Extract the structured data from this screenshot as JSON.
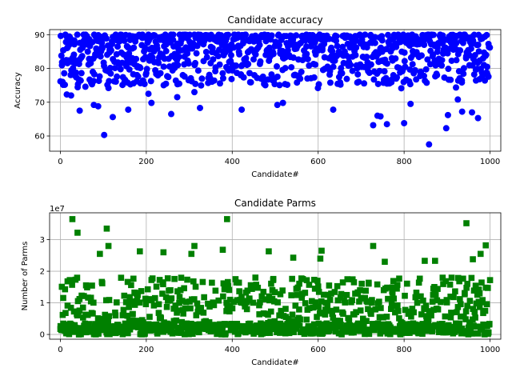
{
  "chart_data": [
    {
      "type": "scatter",
      "title": "Candidate accuracy",
      "xlabel": "Candidate#",
      "ylabel": "Accuracy",
      "xlim": [
        -25,
        1025
      ],
      "ylim": [
        55.5,
        91.5
      ],
      "xticks": [
        0,
        200,
        400,
        600,
        800,
        1000
      ],
      "yticks": [
        60,
        70,
        80,
        90
      ],
      "grid": true,
      "color": "#0000ff",
      "marker": "circle",
      "n_points": 1000,
      "main_band": [
        74,
        90
      ],
      "outliers": [
        {
          "x": 15,
          "y": 72.3
        },
        {
          "x": 25,
          "y": 72.0
        },
        {
          "x": 45,
          "y": 67.5
        },
        {
          "x": 78,
          "y": 69.2
        },
        {
          "x": 88,
          "y": 68.8
        },
        {
          "x": 102,
          "y": 60.3
        },
        {
          "x": 112,
          "y": 74.2
        },
        {
          "x": 122,
          "y": 65.6
        },
        {
          "x": 158,
          "y": 67.8
        },
        {
          "x": 178,
          "y": 76.2
        },
        {
          "x": 205,
          "y": 72.5
        },
        {
          "x": 212,
          "y": 69.8
        },
        {
          "x": 258,
          "y": 66.5
        },
        {
          "x": 272,
          "y": 71.5
        },
        {
          "x": 312,
          "y": 73.0
        },
        {
          "x": 325,
          "y": 68.3
        },
        {
          "x": 422,
          "y": 67.8
        },
        {
          "x": 505,
          "y": 69.2
        },
        {
          "x": 518,
          "y": 69.8
        },
        {
          "x": 635,
          "y": 67.8
        },
        {
          "x": 728,
          "y": 63.2
        },
        {
          "x": 738,
          "y": 66.0
        },
        {
          "x": 745,
          "y": 65.8
        },
        {
          "x": 760,
          "y": 63.5
        },
        {
          "x": 800,
          "y": 63.8
        },
        {
          "x": 815,
          "y": 69.5
        },
        {
          "x": 858,
          "y": 57.5
        },
        {
          "x": 898,
          "y": 62.3
        },
        {
          "x": 902,
          "y": 66.2
        },
        {
          "x": 925,
          "y": 70.8
        },
        {
          "x": 935,
          "y": 67.2
        },
        {
          "x": 958,
          "y": 67.0
        },
        {
          "x": 972,
          "y": 65.3
        }
      ]
    },
    {
      "type": "scatter",
      "title": "Candidate Parms",
      "xlabel": "Candidate#",
      "ylabel": "Number of Parms",
      "offset_text": "1e7",
      "xlim": [
        -25,
        1025
      ],
      "ylim": [
        -1.5,
        38.5
      ],
      "y_units": "1e6",
      "xticks": [
        0,
        200,
        400,
        600,
        800,
        1000
      ],
      "yticks": [
        0,
        10,
        20,
        30
      ],
      "ytick_labels": [
        "0",
        "1",
        "2",
        "3"
      ],
      "grid": true,
      "color": "#008000",
      "marker": "square",
      "n_points": 1000,
      "main_band": [
        0,
        18
      ],
      "outliers": [
        {
          "x": 28,
          "y": 36.5
        },
        {
          "x": 40,
          "y": 32.2
        },
        {
          "x": 108,
          "y": 33.5
        },
        {
          "x": 112,
          "y": 28.0
        },
        {
          "x": 92,
          "y": 25.5
        },
        {
          "x": 185,
          "y": 26.3
        },
        {
          "x": 240,
          "y": 26.0
        },
        {
          "x": 305,
          "y": 25.5
        },
        {
          "x": 312,
          "y": 28.0
        },
        {
          "x": 388,
          "y": 36.5
        },
        {
          "x": 378,
          "y": 26.8
        },
        {
          "x": 485,
          "y": 26.3
        },
        {
          "x": 542,
          "y": 24.3
        },
        {
          "x": 608,
          "y": 26.5
        },
        {
          "x": 605,
          "y": 24.0
        },
        {
          "x": 728,
          "y": 28.0
        },
        {
          "x": 755,
          "y": 23.0
        },
        {
          "x": 848,
          "y": 23.3
        },
        {
          "x": 872,
          "y": 23.3
        },
        {
          "x": 945,
          "y": 35.2
        },
        {
          "x": 990,
          "y": 28.2
        },
        {
          "x": 978,
          "y": 25.5
        },
        {
          "x": 960,
          "y": 23.8
        },
        {
          "x": 1000,
          "y": 17.2
        }
      ]
    }
  ]
}
